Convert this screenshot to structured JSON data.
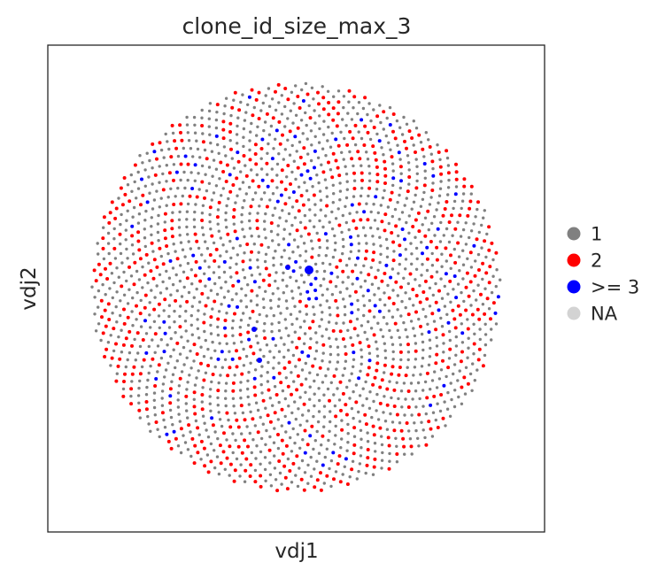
{
  "chart_data": {
    "type": "scatter",
    "title": "clone_id_size_max_3",
    "xlabel": "vdj1",
    "ylabel": "vdj2",
    "grid": false,
    "axis_ticks": false,
    "shape": "circular point cloud",
    "legend_position": "right",
    "categories": [
      {
        "label": "1",
        "color": "#808080",
        "share": 0.7
      },
      {
        "label": "2",
        "color": "#ff0000",
        "share": 0.24
      },
      {
        "label": ">= 3",
        "color": "#0000ff",
        "share": 0.06
      },
      {
        "label": "NA",
        "color": "#d3d3d3",
        "share": 0.0
      }
    ]
  }
}
